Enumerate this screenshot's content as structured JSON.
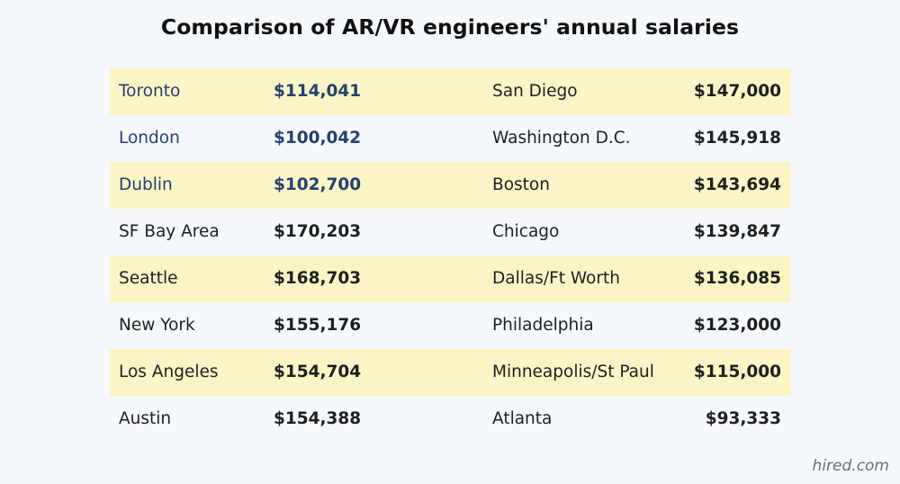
{
  "chart_data": {
    "type": "table",
    "title": "Comparison of AR/VR engineers' annual salaries",
    "rows": [
      {
        "city_left": "Toronto",
        "salary_left": "$114,041",
        "city_right": "San Diego",
        "salary_right": "$147,000",
        "left_international": true
      },
      {
        "city_left": "London",
        "salary_left": "$100,042",
        "city_right": "Washington D.C.",
        "salary_right": "$145,918",
        "left_international": true
      },
      {
        "city_left": "Dublin",
        "salary_left": "$102,700",
        "city_right": "Boston",
        "salary_right": "$143,694",
        "left_international": true
      },
      {
        "city_left": "SF Bay Area",
        "salary_left": "$170,203",
        "city_right": "Chicago",
        "salary_right": "$139,847",
        "left_international": false
      },
      {
        "city_left": "Seattle",
        "salary_left": "$168,703",
        "city_right": "Dallas/Ft Worth",
        "salary_right": "$136,085",
        "left_international": false
      },
      {
        "city_left": "New York",
        "salary_left": "$155,176",
        "city_right": "Philadelphia",
        "salary_right": "$123,000",
        "left_international": false
      },
      {
        "city_left": "Los Angeles",
        "salary_left": "$154,704",
        "city_right": "Minneapolis/St Paul",
        "salary_right": "$115,000",
        "left_international": false
      },
      {
        "city_left": "Austin",
        "salary_left": "$154,388",
        "city_right": "Atlanta",
        "salary_right": "$93,333",
        "left_international": false
      }
    ]
  },
  "colors": {
    "background": "#f5f9fd",
    "row_highlight": "#fbf4c7",
    "international_text": "#24406e",
    "text": "#1f1f1f"
  },
  "footer": {
    "source": "hired.com"
  }
}
